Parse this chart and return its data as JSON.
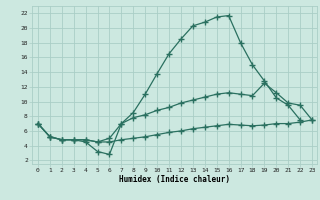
{
  "xlabel": "Humidex (Indice chaleur)",
  "bg_color": "#cce8e0",
  "grid_color": "#aacec6",
  "line_color": "#2a7060",
  "xlim_min": -0.5,
  "xlim_max": 23.4,
  "ylim_min": 1.5,
  "ylim_max": 23.0,
  "xticks": [
    0,
    1,
    2,
    3,
    4,
    5,
    6,
    7,
    8,
    9,
    10,
    11,
    12,
    13,
    14,
    15,
    16,
    17,
    18,
    19,
    20,
    21,
    22,
    23
  ],
  "yticks": [
    2,
    4,
    6,
    8,
    10,
    12,
    14,
    16,
    18,
    20,
    22
  ],
  "curve1_x": [
    0,
    1,
    2,
    3,
    4,
    5,
    6,
    7,
    8,
    9,
    10,
    11,
    12,
    13,
    14,
    15,
    16,
    17,
    18,
    19,
    20,
    21,
    22
  ],
  "curve1_y": [
    7.0,
    5.2,
    4.8,
    4.8,
    4.5,
    3.2,
    2.8,
    7.0,
    8.5,
    11.0,
    13.8,
    16.5,
    18.5,
    20.3,
    20.8,
    21.5,
    21.7,
    18.0,
    15.0,
    12.8,
    10.5,
    9.5,
    7.5
  ],
  "curve2_x": [
    0,
    1,
    2,
    3,
    4,
    5,
    6,
    7,
    8,
    9,
    10,
    11,
    12,
    13,
    14,
    15,
    16,
    17,
    18,
    19,
    20,
    21,
    22,
    23
  ],
  "curve2_y": [
    7.0,
    5.2,
    4.8,
    4.8,
    4.8,
    4.5,
    5.0,
    7.0,
    7.8,
    8.2,
    8.8,
    9.2,
    9.8,
    10.2,
    10.6,
    11.0,
    11.2,
    11.0,
    10.8,
    12.5,
    11.2,
    9.8,
    9.5,
    7.5
  ],
  "curve3_x": [
    0,
    1,
    2,
    3,
    4,
    5,
    6,
    7,
    8,
    9,
    10,
    11,
    12,
    13,
    14,
    15,
    16,
    17,
    18,
    19,
    20,
    21,
    22,
    23
  ],
  "curve3_y": [
    7.0,
    5.2,
    4.8,
    4.8,
    4.8,
    4.5,
    4.5,
    4.8,
    5.0,
    5.2,
    5.5,
    5.8,
    6.0,
    6.3,
    6.5,
    6.7,
    6.9,
    6.8,
    6.7,
    6.8,
    7.0,
    7.0,
    7.2,
    7.5
  ]
}
